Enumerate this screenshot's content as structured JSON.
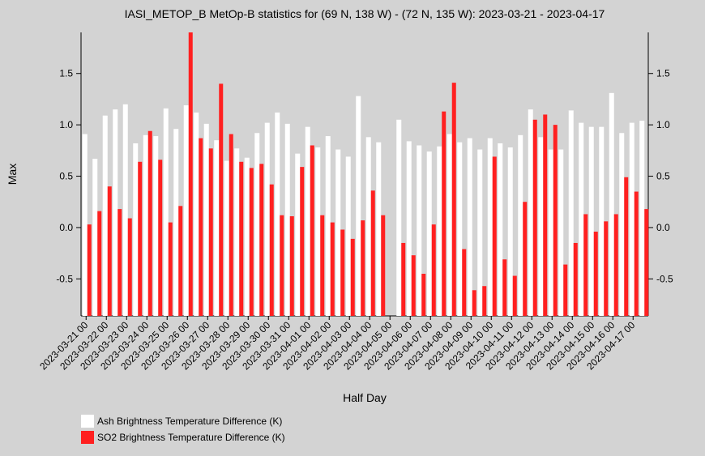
{
  "chart_data": {
    "type": "bar",
    "title": "IASI_METOP_B MetOp-B statistics for (69 N, 138 W) - (72 N, 135 W): 2023-03-21 - 2023-04-17",
    "x_label": "Half Day",
    "y_label": "Max",
    "categories": [
      "2023-03-21 00",
      null,
      "2023-03-22 00",
      null,
      "2023-03-23 00",
      null,
      "2023-03-24 00",
      null,
      "2023-03-25 00",
      null,
      "2023-03-26 00",
      null,
      "2023-03-27 00",
      null,
      "2023-03-28 00",
      null,
      "2023-03-29 00",
      null,
      "2023-03-30 00",
      null,
      "2023-03-31 00",
      null,
      "2023-04-01 00",
      null,
      "2023-04-02 00",
      null,
      "2023-04-03 00",
      null,
      "2023-04-04 00",
      null,
      "2023-04-05 00",
      null,
      "2023-04-06 00",
      null,
      "2023-04-07 00",
      null,
      "2023-04-08 00",
      null,
      "2023-04-09 00",
      null,
      "2023-04-10 00",
      null,
      "2023-04-11 00",
      null,
      "2023-04-12 00",
      null,
      "2023-04-13 00",
      null,
      "2023-04-14 00",
      null,
      "2023-04-15 00",
      null,
      "2023-04-16 00",
      null,
      "2023-04-17 00",
      null
    ],
    "series": [
      {
        "name": "Ash Brightness Temperature Difference (K)",
        "color": "#ffffff",
        "values": [
          0.91,
          0.67,
          1.09,
          1.15,
          1.2,
          0.82,
          0.9,
          0.89,
          1.16,
          0.96,
          1.19,
          1.12,
          1.01,
          0.85,
          0.65,
          0.77,
          0.68,
          0.92,
          1.02,
          1.12,
          1.01,
          0.72,
          0.98,
          0.78,
          0.89,
          0.76,
          0.69,
          1.28,
          0.88,
          0.83,
          null,
          1.05,
          0.84,
          0.8,
          0.74,
          0.79,
          0.91,
          0.83,
          0.87,
          0.76,
          0.87,
          0.82,
          0.78,
          0.9,
          1.15,
          0.88,
          0.76,
          0.76,
          1.14,
          1.02,
          0.98,
          0.98,
          1.31,
          0.92,
          1.02,
          1.04
        ]
      },
      {
        "name": "SO2 Brightness Temperature Difference (K)",
        "color": "#ff2020",
        "values": [
          0.03,
          0.16,
          0.4,
          0.18,
          0.09,
          0.64,
          0.94,
          0.66,
          0.05,
          0.21,
          1.9,
          0.87,
          0.77,
          1.4,
          0.91,
          0.64,
          0.58,
          0.62,
          0.42,
          0.12,
          0.11,
          0.59,
          0.8,
          0.12,
          0.05,
          -0.02,
          -0.11,
          0.07,
          0.36,
          0.12,
          null,
          -0.15,
          -0.27,
          -0.45,
          0.03,
          1.13,
          1.41,
          -0.21,
          -0.61,
          -0.57,
          0.69,
          -0.31,
          -0.47,
          0.25,
          1.05,
          1.1,
          1.0,
          -0.36,
          -0.15,
          0.13,
          -0.04,
          0.06,
          0.13,
          0.49,
          0.35,
          0.18
        ]
      }
    ],
    "ylim": [
      -0.86,
      1.9
    ],
    "yticks": [
      -0.5,
      {
        "value": 0,
        "label": "0.0"
      },
      0.5,
      {
        "value": 1,
        "label": "1.0"
      },
      1.5
    ],
    "grid": false
  }
}
